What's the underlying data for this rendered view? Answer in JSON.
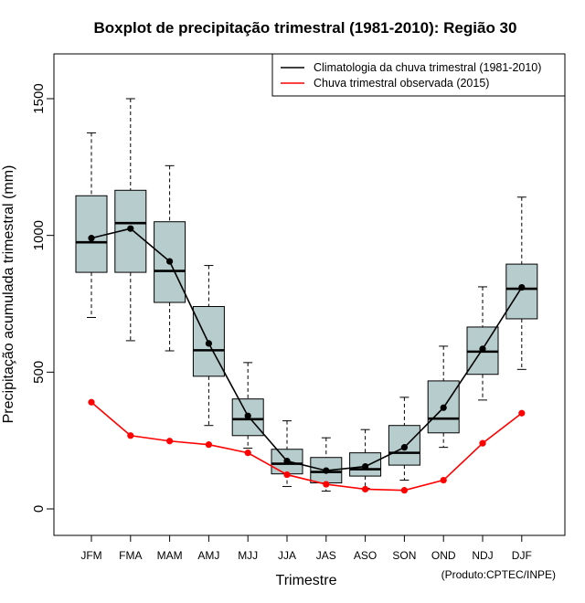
{
  "chart_data": {
    "type": "boxplot",
    "title": "Boxplot de precipitação trimestral (1981-2010): Região 30",
    "xlabel": "Trimestre",
    "ylabel": "Precipitação acumulada trimestral (mm)",
    "credit": "(Produto:CPTEC/INPE)",
    "ylim": [
      -100,
      1660
    ],
    "yticks": [
      0,
      500,
      1000,
      1500
    ],
    "categories": [
      "JFM",
      "FMA",
      "MAM",
      "AMJ",
      "MJJ",
      "JJA",
      "JAS",
      "ASO",
      "SON",
      "OND",
      "NDJ",
      "DJF"
    ],
    "boxes": [
      {
        "min": 700,
        "q1": 865,
        "median": 975,
        "q3": 1145,
        "max": 1375
      },
      {
        "min": 615,
        "q1": 865,
        "median": 1045,
        "q3": 1165,
        "max": 1500
      },
      {
        "min": 578,
        "q1": 755,
        "median": 870,
        "q3": 1050,
        "max": 1255
      },
      {
        "min": 305,
        "q1": 485,
        "median": 580,
        "q3": 740,
        "max": 890
      },
      {
        "min": 222,
        "q1": 268,
        "median": 328,
        "q3": 402,
        "max": 535
      },
      {
        "min": 82,
        "q1": 128,
        "median": 165,
        "q3": 218,
        "max": 322
      },
      {
        "min": 65,
        "q1": 95,
        "median": 135,
        "q3": 188,
        "max": 260
      },
      {
        "min": 75,
        "q1": 120,
        "median": 145,
        "q3": 205,
        "max": 290
      },
      {
        "min": 105,
        "q1": 160,
        "median": 205,
        "q3": 305,
        "max": 408
      },
      {
        "min": 225,
        "q1": 278,
        "median": 330,
        "q3": 468,
        "max": 595
      },
      {
        "min": 398,
        "q1": 492,
        "median": 575,
        "q3": 665,
        "max": 812
      },
      {
        "min": 510,
        "q1": 695,
        "median": 805,
        "q3": 895,
        "max": 1140
      }
    ],
    "series": [
      {
        "name": "Climatologia da chuva trimestral (1981-2010)",
        "color": "#000000",
        "values": [
          990,
          1025,
          905,
          605,
          340,
          175,
          140,
          155,
          225,
          370,
          585,
          810
        ]
      },
      {
        "name": "Chuva trimestral observada (2015)",
        "color": "#ff0000",
        "values": [
          390,
          268,
          248,
          235,
          205,
          125,
          90,
          72,
          68,
          105,
          240,
          350
        ]
      }
    ],
    "legend": "top-right",
    "box_fill": "#b7cccc"
  }
}
